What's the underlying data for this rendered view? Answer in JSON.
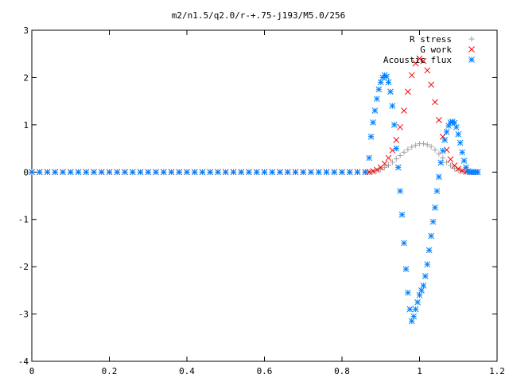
{
  "chart_data": {
    "type": "scatter",
    "title": "m2/n1.5/q2.0/r-+.75-j193/M5.0/256",
    "xlabel": "",
    "ylabel": "",
    "xlim": [
      0,
      1.2
    ],
    "ylim": [
      -4,
      3
    ],
    "xticks": [
      0,
      0.2,
      0.4,
      0.6,
      0.8,
      1,
      1.2
    ],
    "xtick_labels": [
      "0",
      "0.2",
      "0.4",
      "0.6",
      "0.8",
      "1",
      "1.2"
    ],
    "yticks": [
      -4,
      -3,
      -2,
      -1,
      0,
      1,
      2,
      3
    ],
    "ytick_labels": [
      "-4",
      "-3",
      "-2",
      "-1",
      "0",
      "1",
      "2",
      "3"
    ],
    "grid": false,
    "legend_position": "top-right",
    "series": [
      {
        "name": "R stress",
        "marker": "plus",
        "color": "#a0a0a0",
        "x": [
          0.0,
          0.02,
          0.04,
          0.06,
          0.08,
          0.1,
          0.12,
          0.14,
          0.16,
          0.18,
          0.2,
          0.22,
          0.24,
          0.26,
          0.28,
          0.3,
          0.32,
          0.34,
          0.36,
          0.38,
          0.4,
          0.42,
          0.44,
          0.46,
          0.48,
          0.5,
          0.52,
          0.54,
          0.56,
          0.58,
          0.6,
          0.62,
          0.64,
          0.66,
          0.68,
          0.7,
          0.72,
          0.74,
          0.76,
          0.78,
          0.8,
          0.82,
          0.84,
          0.86,
          0.87,
          0.88,
          0.89,
          0.9,
          0.91,
          0.92,
          0.93,
          0.94,
          0.95,
          0.96,
          0.97,
          0.98,
          0.99,
          1.0,
          1.01,
          1.02,
          1.03,
          1.04,
          1.05,
          1.06,
          1.07,
          1.08,
          1.09,
          1.1,
          1.11,
          1.12,
          1.13,
          1.14,
          1.15
        ],
        "y": [
          0,
          0,
          0,
          0,
          0,
          0,
          0,
          0,
          0,
          0,
          0,
          0,
          0,
          0,
          0,
          0,
          0,
          0,
          0,
          0,
          0,
          0,
          0,
          0,
          0,
          0,
          0,
          0,
          0,
          0,
          0,
          0,
          0,
          0,
          0,
          0,
          0,
          0,
          0,
          0,
          0,
          0,
          0,
          0,
          0.0,
          0.01,
          0.03,
          0.06,
          0.1,
          0.15,
          0.21,
          0.28,
          0.35,
          0.42,
          0.48,
          0.53,
          0.57,
          0.6,
          0.6,
          0.58,
          0.54,
          0.47,
          0.39,
          0.3,
          0.21,
          0.14,
          0.08,
          0.04,
          0.02,
          0.01,
          0.0,
          0.0,
          0.0
        ]
      },
      {
        "name": "G work",
        "marker": "cross",
        "color": "#ff0000",
        "x": [
          0.0,
          0.02,
          0.04,
          0.06,
          0.08,
          0.1,
          0.12,
          0.14,
          0.16,
          0.18,
          0.2,
          0.22,
          0.24,
          0.26,
          0.28,
          0.3,
          0.32,
          0.34,
          0.36,
          0.38,
          0.4,
          0.42,
          0.44,
          0.46,
          0.48,
          0.5,
          0.52,
          0.54,
          0.56,
          0.58,
          0.6,
          0.62,
          0.64,
          0.66,
          0.68,
          0.7,
          0.72,
          0.74,
          0.76,
          0.78,
          0.8,
          0.82,
          0.84,
          0.86,
          0.87,
          0.88,
          0.89,
          0.9,
          0.91,
          0.92,
          0.93,
          0.94,
          0.95,
          0.96,
          0.97,
          0.98,
          0.99,
          1.0,
          1.01,
          1.02,
          1.03,
          1.04,
          1.05,
          1.06,
          1.07,
          1.08,
          1.09,
          1.1,
          1.11,
          1.12,
          1.13,
          1.14,
          1.15
        ],
        "y": [
          0,
          0,
          0,
          0,
          0,
          0,
          0,
          0,
          0,
          0,
          0,
          0,
          0,
          0,
          0,
          0,
          0,
          0,
          0,
          0,
          0,
          0,
          0,
          0,
          0,
          0,
          0,
          0,
          0,
          0,
          0,
          0,
          0,
          0,
          0,
          0,
          0,
          0,
          0,
          0,
          0,
          0,
          0,
          0,
          0.0,
          0.02,
          0.05,
          0.1,
          0.18,
          0.3,
          0.46,
          0.68,
          0.95,
          1.3,
          1.7,
          2.05,
          2.3,
          2.4,
          2.35,
          2.15,
          1.85,
          1.48,
          1.1,
          0.75,
          0.47,
          0.27,
          0.14,
          0.07,
          0.03,
          0.01,
          0.0,
          0.0,
          0.0
        ]
      },
      {
        "name": "Acoustic flux",
        "marker": "star",
        "color": "#0080ff",
        "x": [
          0.0,
          0.02,
          0.04,
          0.06,
          0.08,
          0.1,
          0.12,
          0.14,
          0.16,
          0.18,
          0.2,
          0.22,
          0.24,
          0.26,
          0.28,
          0.3,
          0.32,
          0.34,
          0.36,
          0.38,
          0.4,
          0.42,
          0.44,
          0.46,
          0.48,
          0.5,
          0.52,
          0.54,
          0.56,
          0.58,
          0.6,
          0.62,
          0.64,
          0.66,
          0.68,
          0.7,
          0.72,
          0.74,
          0.76,
          0.78,
          0.8,
          0.82,
          0.84,
          0.86,
          0.87,
          0.875,
          0.88,
          0.885,
          0.89,
          0.895,
          0.9,
          0.905,
          0.91,
          0.915,
          0.92,
          0.925,
          0.93,
          0.935,
          0.94,
          0.945,
          0.95,
          0.955,
          0.96,
          0.965,
          0.97,
          0.975,
          0.98,
          0.985,
          0.99,
          0.995,
          1.0,
          1.005,
          1.01,
          1.015,
          1.02,
          1.025,
          1.03,
          1.035,
          1.04,
          1.045,
          1.05,
          1.055,
          1.06,
          1.065,
          1.07,
          1.075,
          1.08,
          1.085,
          1.09,
          1.095,
          1.1,
          1.105,
          1.11,
          1.115,
          1.12,
          1.125,
          1.13,
          1.135,
          1.14,
          1.145,
          1.15
        ],
        "y": [
          0,
          0,
          0,
          0,
          0,
          0,
          0,
          0,
          0,
          0,
          0,
          0,
          0,
          0,
          0,
          0,
          0,
          0,
          0,
          0,
          0,
          0,
          0,
          0,
          0,
          0,
          0,
          0,
          0,
          0,
          0,
          0,
          0,
          0,
          0,
          0,
          0,
          0,
          0,
          0,
          0,
          0,
          0,
          0,
          0.3,
          0.75,
          1.05,
          1.3,
          1.55,
          1.75,
          1.9,
          2.0,
          2.05,
          2.02,
          1.9,
          1.7,
          1.4,
          1.0,
          0.5,
          0.1,
          -0.4,
          -0.9,
          -1.5,
          -2.05,
          -2.55,
          -2.9,
          -3.15,
          -3.05,
          -2.9,
          -2.75,
          -2.6,
          -2.5,
          -2.4,
          -2.2,
          -1.95,
          -1.65,
          -1.35,
          -1.05,
          -0.75,
          -0.4,
          -0.1,
          0.2,
          0.45,
          0.68,
          0.85,
          0.98,
          1.05,
          1.07,
          1.04,
          0.95,
          0.8,
          0.62,
          0.42,
          0.24,
          0.1,
          0.02,
          0.0,
          0.0,
          0.0,
          0.0,
          0.0
        ]
      }
    ]
  }
}
